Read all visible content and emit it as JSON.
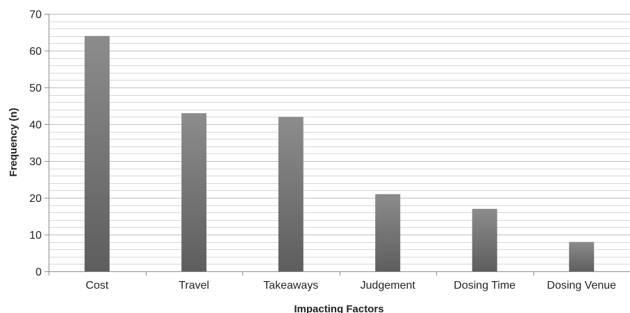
{
  "chart_data": {
    "type": "bar",
    "title": "",
    "xlabel": "Impacting Factors",
    "ylabel": "Frequency (n)",
    "categories": [
      "Cost",
      "Travel",
      "Takeaways",
      "Judgement",
      "Dosing Time",
      "Dosing Venue"
    ],
    "values": [
      64,
      43,
      42,
      21,
      17,
      8
    ],
    "ylim": [
      0,
      70
    ],
    "yticks": [
      0,
      10,
      20,
      30,
      40,
      50,
      60,
      70
    ],
    "minor_step": 2,
    "grid": true,
    "legend": "none",
    "colors": {
      "bar_top": "#8c8c8c",
      "bar_bottom": "#5e5e5e",
      "grid_major": "#bdbdbd",
      "grid_minor": "#d6d6d6",
      "axis": "#8a8a8a"
    }
  }
}
